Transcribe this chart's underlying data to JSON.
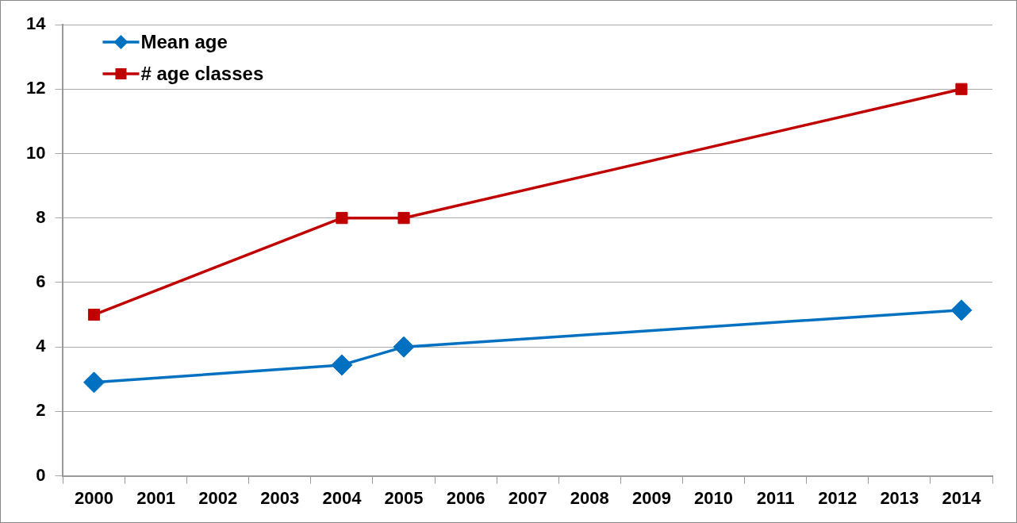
{
  "chart_data": {
    "type": "line",
    "categories": [
      "2000",
      "2001",
      "2002",
      "2003",
      "2004",
      "2005",
      "2006",
      "2007",
      "2008",
      "2009",
      "2010",
      "2011",
      "2012",
      "2013",
      "2014"
    ],
    "series": [
      {
        "name": "Mean age",
        "color": "#0070c0",
        "marker": "diamond",
        "values": [
          2.9,
          null,
          null,
          null,
          3.44,
          4.0,
          null,
          null,
          null,
          null,
          null,
          null,
          null,
          null,
          5.14
        ]
      },
      {
        "name": "# age classes",
        "color": "#c00000",
        "marker": "square",
        "values": [
          5,
          null,
          null,
          null,
          8,
          8,
          null,
          null,
          null,
          null,
          null,
          null,
          null,
          null,
          12
        ]
      }
    ],
    "ylim": [
      0,
      14
    ],
    "yticks": [
      0,
      2,
      4,
      6,
      8,
      10,
      12,
      14
    ],
    "grid": "y",
    "legend": "top left",
    "line_style": "solid"
  }
}
